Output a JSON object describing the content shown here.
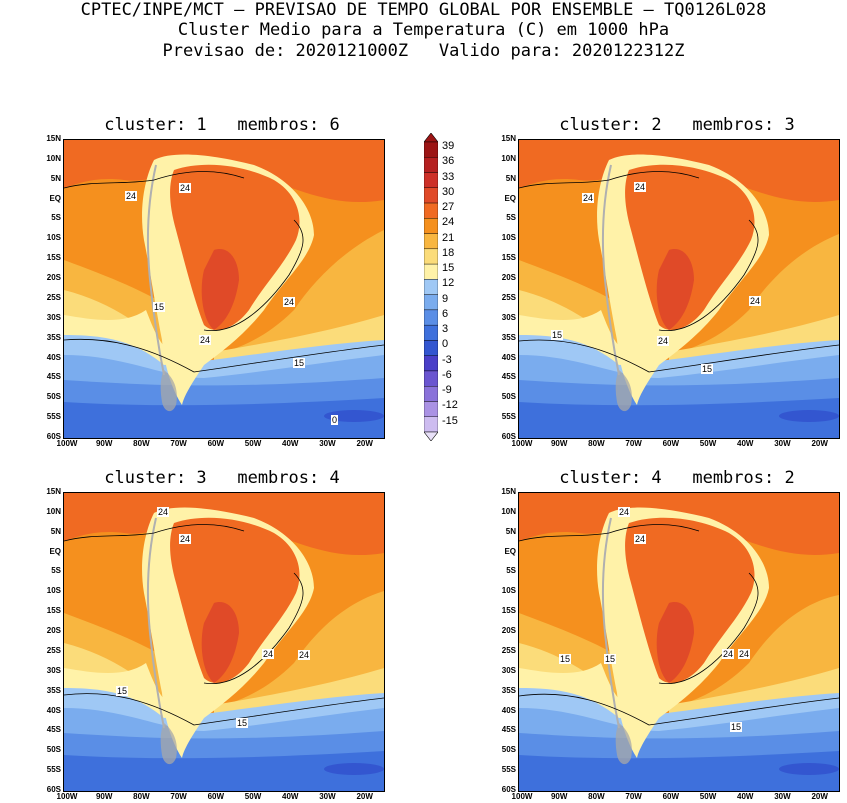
{
  "header": {
    "line1": "CPTEC/INPE/MCT – PREVISAO DE TEMPO GLOBAL POR ENSEMBLE – TQ0126L028",
    "line2": "Cluster Medio para a Temperatura (C) em 1000 hPa",
    "line3": "Previsao de: 2020121000Z   Valido para: 2020122312Z"
  },
  "axes": {
    "lat_labels": [
      "15N",
      "10N",
      "5N",
      "EQ",
      "5S",
      "10S",
      "15S",
      "20S",
      "25S",
      "30S",
      "35S",
      "40S",
      "45S",
      "50S",
      "55S",
      "60S"
    ],
    "lon_labels": [
      "100W",
      "90W",
      "80W",
      "70W",
      "60W",
      "50W",
      "40W",
      "30W",
      "20W"
    ]
  },
  "colorbar": {
    "levels": [
      "39",
      "36",
      "33",
      "30",
      "27",
      "24",
      "21",
      "18",
      "15",
      "12",
      "9",
      "6",
      "3",
      "0",
      "-3",
      "-6",
      "-9",
      "-12",
      "-15"
    ],
    "colors": [
      "#9c1515",
      "#b52020",
      "#cd3028",
      "#e04a28",
      "#f06a22",
      "#f5901e",
      "#f8b640",
      "#fbdc7a",
      "#fff2a8",
      "#9fc8f5",
      "#7aacee",
      "#5a8ee6",
      "#3e70dc",
      "#3356d0",
      "#4a3fc8",
      "#6a55d0",
      "#8a72da",
      "#aa92e4",
      "#cdbcf0"
    ]
  },
  "panels": [
    {
      "title": "cluster: 1   membros: 6",
      "contour_labels": [
        "24",
        "24",
        "24",
        "24",
        "15",
        "15",
        "0"
      ]
    },
    {
      "title": "cluster: 2   membros: 3",
      "contour_labels": [
        "24",
        "24",
        "24",
        "24",
        "15",
        "15"
      ]
    },
    {
      "title": "cluster: 3   membros: 4",
      "contour_labels": [
        "24",
        "24",
        "24",
        "24",
        "15",
        "15"
      ]
    },
    {
      "title": "cluster: 4   membros: 2",
      "contour_labels": [
        "24",
        "24",
        "24",
        "24",
        "15",
        "15",
        "15"
      ]
    }
  ]
}
